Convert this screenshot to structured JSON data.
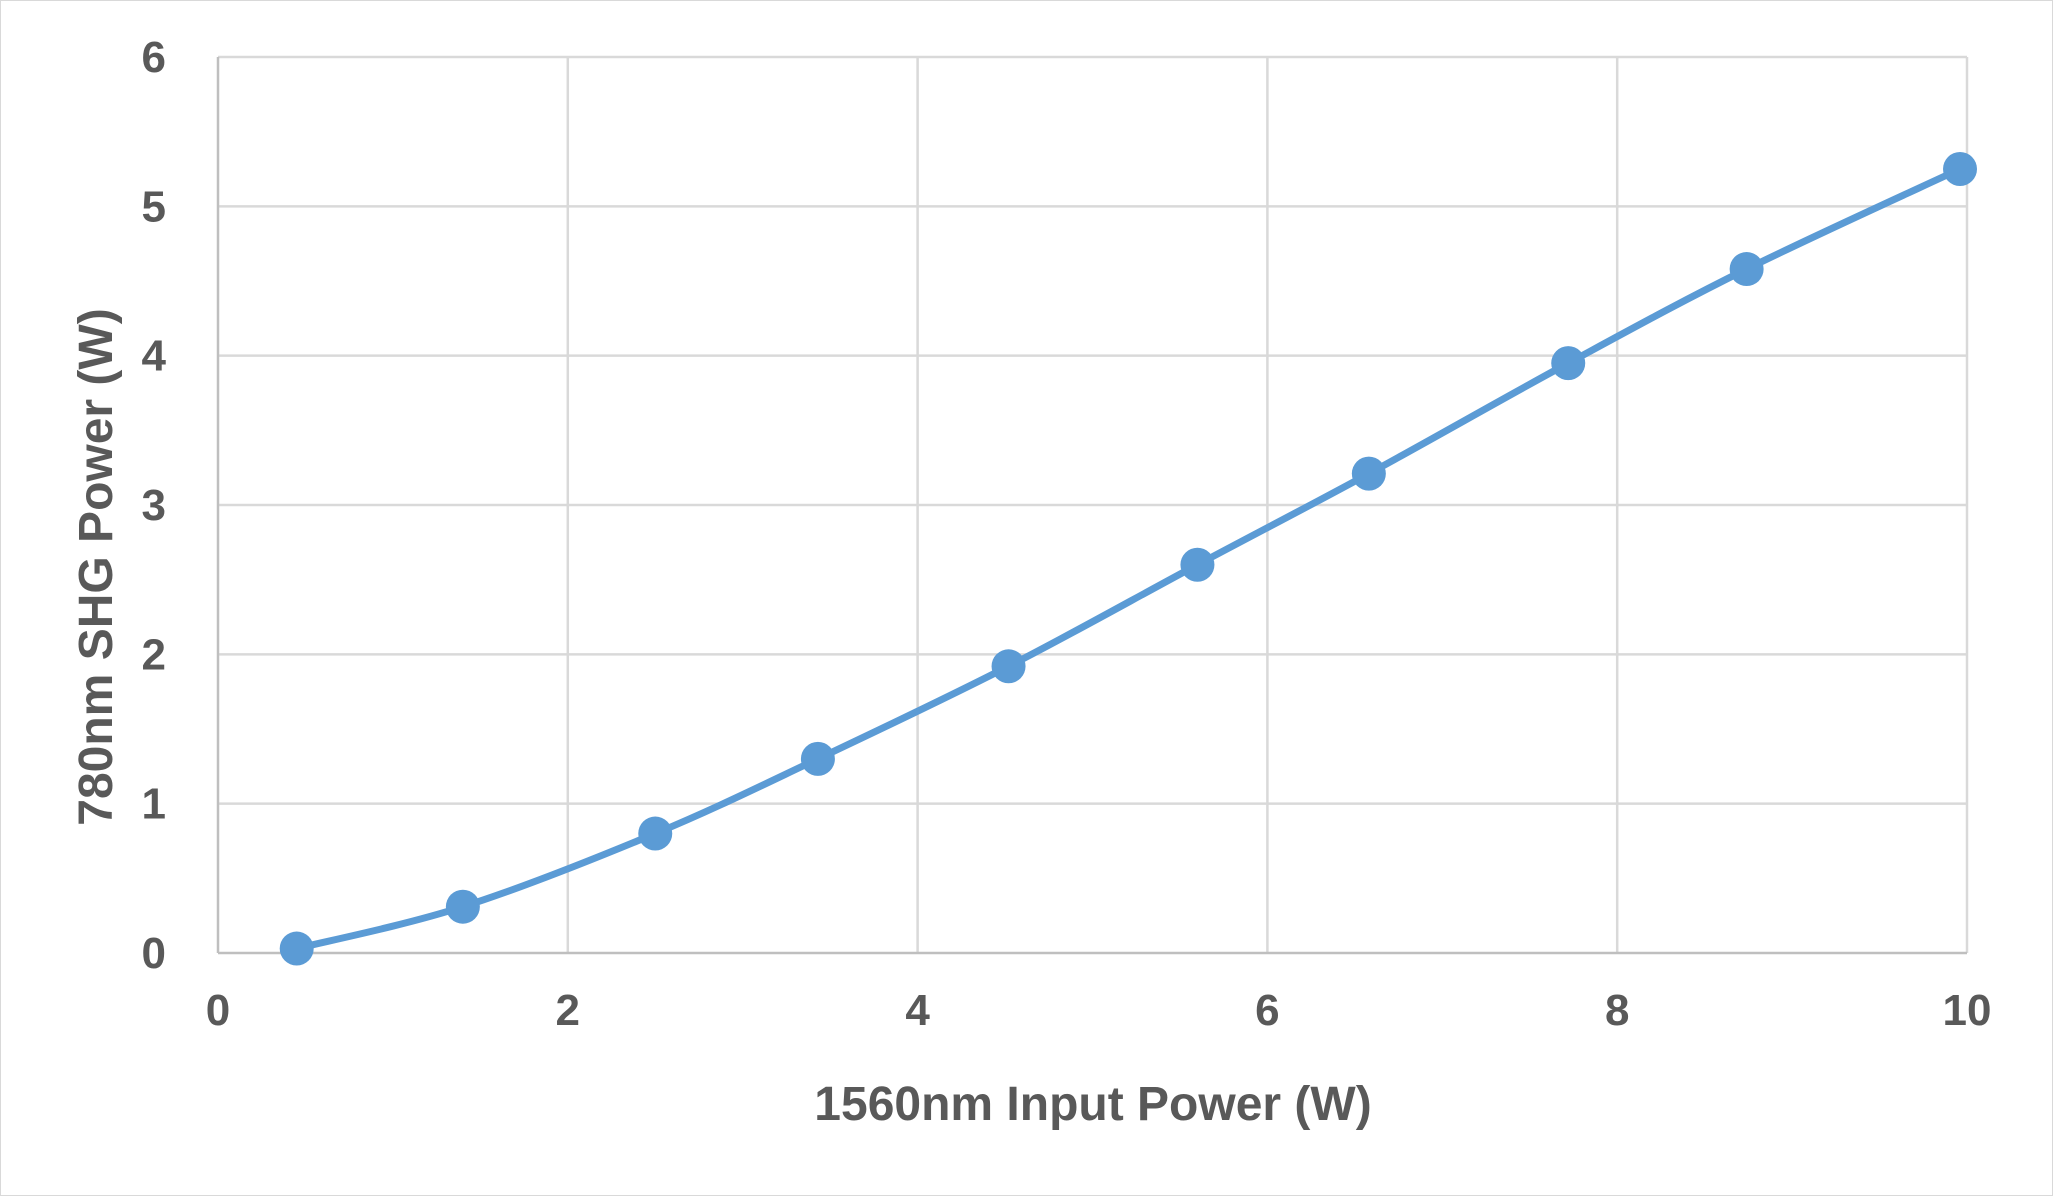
{
  "chart_data": {
    "type": "scatter",
    "mode": "lines+markers",
    "smooth": true,
    "xlabel": "1560nm Input Power (W)",
    "ylabel": "780nm SHG Power (W)",
    "xlim": [
      0,
      10
    ],
    "ylim": [
      0,
      6
    ],
    "x_ticks": [
      0,
      2,
      4,
      6,
      8,
      10
    ],
    "y_ticks": [
      0,
      1,
      2,
      3,
      4,
      5,
      6
    ],
    "grid": true,
    "legend": "none",
    "series": [
      {
        "color": "#5B9BD5",
        "x": [
          0.45,
          1.4,
          2.5,
          3.43,
          4.52,
          5.6,
          6.58,
          7.72,
          8.74,
          9.96
        ],
        "y": [
          0.03,
          0.31,
          0.8,
          1.3,
          1.92,
          2.6,
          3.21,
          3.95,
          4.58,
          5.25
        ]
      }
    ]
  }
}
